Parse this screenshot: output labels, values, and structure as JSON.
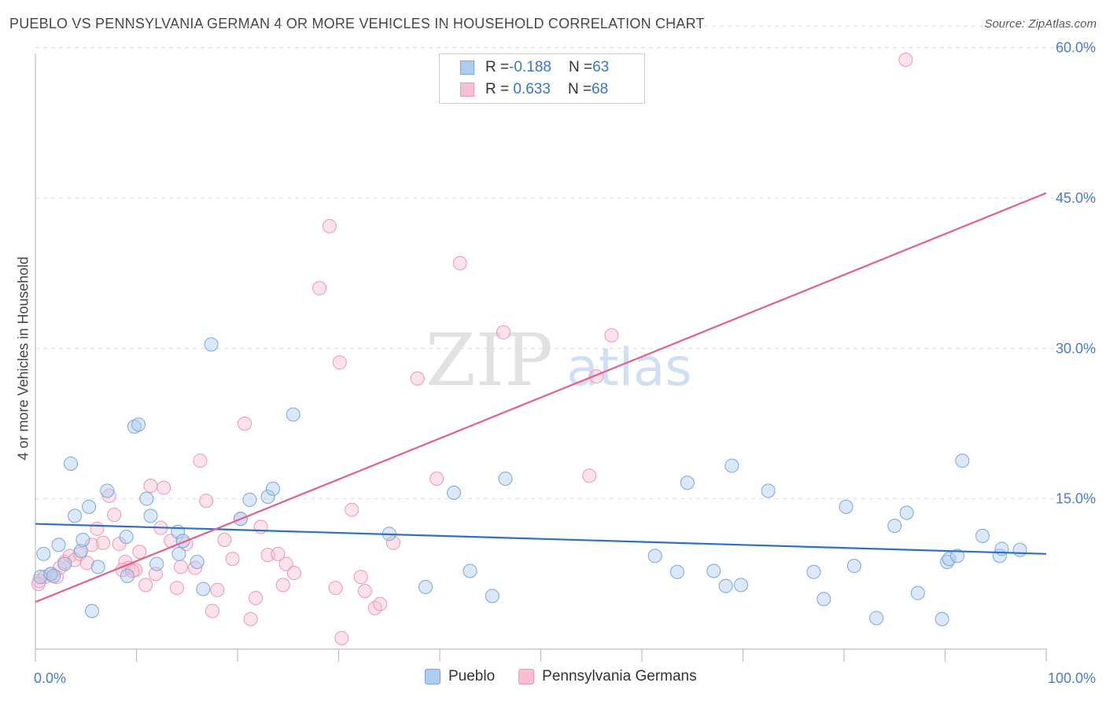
{
  "header": {
    "title": "PUEBLO VS PENNSYLVANIA GERMAN 4 OR MORE VEHICLES IN HOUSEHOLD CORRELATION CHART",
    "source": "Source: ZipAtlas.com"
  },
  "watermark": {
    "part1": "ZIP",
    "part2": "atlas"
  },
  "legend": {
    "rows": [
      {
        "r_label": "R = ",
        "r_value": "-0.188",
        "n_label": "N = ",
        "n_value": "63"
      },
      {
        "r_label": "R = ",
        "r_value": " 0.633",
        "n_label": "N = ",
        "n_value": "68"
      }
    ]
  },
  "bottom_legend": {
    "series1": "Pueblo",
    "series2": "Pennsylvania Germans"
  },
  "colors": {
    "pueblo_fill": "#aecbf0",
    "pueblo_stroke": "#7aa6dd",
    "pueblo_line": "#2f6fc9",
    "penn_fill": "#f8c0d0",
    "penn_stroke": "#ee96b2",
    "penn_line": "#e0608e",
    "axis_text": "#4a7cc9",
    "grid": "#dcdcdc"
  },
  "chart_data": {
    "type": "scatter",
    "title": "PUEBLO VS PENNSYLVANIA GERMAN 4 OR MORE VEHICLES IN HOUSEHOLD CORRELATION CHART",
    "xlabel": "",
    "ylabel": "4 or more Vehicles in Household",
    "xlim": [
      0,
      100
    ],
    "ylim": [
      0,
      62
    ],
    "x_tick_labels": [
      "0.0%",
      "100.0%"
    ],
    "y_ticks": [
      15,
      30,
      45,
      60
    ],
    "y_tick_labels": [
      "15.0%",
      "30.0%",
      "45.0%",
      "60.0%"
    ],
    "series": [
      {
        "name": "Pueblo",
        "R": -0.188,
        "N": 63,
        "trend": {
          "x": [
            0,
            100
          ],
          "y": [
            12.5,
            9.5
          ]
        },
        "points": [
          [
            0.5,
            7.2
          ],
          [
            0.8,
            9.5
          ],
          [
            1.5,
            7.5
          ],
          [
            1.8,
            7.3
          ],
          [
            2.3,
            10.4
          ],
          [
            2.9,
            8.5
          ],
          [
            3.5,
            18.5
          ],
          [
            3.9,
            13.3
          ],
          [
            4.5,
            9.8
          ],
          [
            4.7,
            10.9
          ],
          [
            5.3,
            14.2
          ],
          [
            5.6,
            3.8
          ],
          [
            6.2,
            8.2
          ],
          [
            7.1,
            15.8
          ],
          [
            9.0,
            11.2
          ],
          [
            9.1,
            7.3
          ],
          [
            9.8,
            22.2
          ],
          [
            10.2,
            22.4
          ],
          [
            11.0,
            15.0
          ],
          [
            11.4,
            13.3
          ],
          [
            12.0,
            8.5
          ],
          [
            14.1,
            11.7
          ],
          [
            14.2,
            9.5
          ],
          [
            14.6,
            10.8
          ],
          [
            16.0,
            8.7
          ],
          [
            16.6,
            6.0
          ],
          [
            17.4,
            30.4
          ],
          [
            20.3,
            13.0
          ],
          [
            21.2,
            14.9
          ],
          [
            23.0,
            15.2
          ],
          [
            23.5,
            16.0
          ],
          [
            25.5,
            23.4
          ],
          [
            35.0,
            11.5
          ],
          [
            38.6,
            6.2
          ],
          [
            41.4,
            15.6
          ],
          [
            43.0,
            7.8
          ],
          [
            45.2,
            5.3
          ],
          [
            46.5,
            17.0
          ],
          [
            61.3,
            9.3
          ],
          [
            63.5,
            7.7
          ],
          [
            64.5,
            16.6
          ],
          [
            67.1,
            7.8
          ],
          [
            68.3,
            6.3
          ],
          [
            68.9,
            18.3
          ],
          [
            69.8,
            6.4
          ],
          [
            72.5,
            15.8
          ],
          [
            77.0,
            7.7
          ],
          [
            78.0,
            5.0
          ],
          [
            80.2,
            14.2
          ],
          [
            81.0,
            8.3
          ],
          [
            83.2,
            3.1
          ],
          [
            85.0,
            12.3
          ],
          [
            86.2,
            13.6
          ],
          [
            87.3,
            5.6
          ],
          [
            89.7,
            3.0
          ],
          [
            90.2,
            8.7
          ],
          [
            90.4,
            9.0
          ],
          [
            91.2,
            9.3
          ],
          [
            91.7,
            18.8
          ],
          [
            93.7,
            11.3
          ],
          [
            95.4,
            9.3
          ],
          [
            95.6,
            10.0
          ],
          [
            97.4,
            9.9
          ]
        ]
      },
      {
        "name": "Pennsylvania Germans",
        "R": 0.633,
        "N": 68,
        "trend": {
          "x": [
            0,
            100
          ],
          "y": [
            4.7,
            45.5
          ]
        },
        "points": [
          [
            0.4,
            6.8
          ],
          [
            0.9,
            7.2
          ],
          [
            1.6,
            7.5
          ],
          [
            2.1,
            7.2
          ],
          [
            2.4,
            8.1
          ],
          [
            2.9,
            8.7
          ],
          [
            3.4,
            9.3
          ],
          [
            3.9,
            8.9
          ],
          [
            4.4,
            9.5
          ],
          [
            5.1,
            8.6
          ],
          [
            5.6,
            10.4
          ],
          [
            6.1,
            12.0
          ],
          [
            6.7,
            10.6
          ],
          [
            7.3,
            15.3
          ],
          [
            7.8,
            13.4
          ],
          [
            8.3,
            10.5
          ],
          [
            8.9,
            8.7
          ],
          [
            9.2,
            8.1
          ],
          [
            9.9,
            7.9
          ],
          [
            10.3,
            9.7
          ],
          [
            10.9,
            6.4
          ],
          [
            11.4,
            16.3
          ],
          [
            11.9,
            7.5
          ],
          [
            12.4,
            12.1
          ],
          [
            12.7,
            16.1
          ],
          [
            13.4,
            10.8
          ],
          [
            14.0,
            6.1
          ],
          [
            14.4,
            8.2
          ],
          [
            14.9,
            10.5
          ],
          [
            15.8,
            8.1
          ],
          [
            16.3,
            18.8
          ],
          [
            16.9,
            14.8
          ],
          [
            17.5,
            3.8
          ],
          [
            18.0,
            5.9
          ],
          [
            18.7,
            10.9
          ],
          [
            19.5,
            9.0
          ],
          [
            20.3,
            13.0
          ],
          [
            20.7,
            22.5
          ],
          [
            21.3,
            3.0
          ],
          [
            21.8,
            5.1
          ],
          [
            22.3,
            12.2
          ],
          [
            23.0,
            9.4
          ],
          [
            24.0,
            9.5
          ],
          [
            24.5,
            6.4
          ],
          [
            24.8,
            8.5
          ],
          [
            25.6,
            7.6
          ],
          [
            28.1,
            36.0
          ],
          [
            29.1,
            42.2
          ],
          [
            29.7,
            6.1
          ],
          [
            30.1,
            28.6
          ],
          [
            30.3,
            1.1
          ],
          [
            31.3,
            13.9
          ],
          [
            32.2,
            7.2
          ],
          [
            32.6,
            5.8
          ],
          [
            33.6,
            4.1
          ],
          [
            34.1,
            4.5
          ],
          [
            35.4,
            10.6
          ],
          [
            37.8,
            27.0
          ],
          [
            39.7,
            17.0
          ],
          [
            42.0,
            38.5
          ],
          [
            46.3,
            31.6
          ],
          [
            54.8,
            17.3
          ],
          [
            55.5,
            27.2
          ],
          [
            57.0,
            31.3
          ],
          [
            86.1,
            58.8
          ],
          [
            0.3,
            6.5
          ],
          [
            8.6,
            7.9
          ],
          [
            9.6,
            7.8
          ]
        ]
      }
    ]
  }
}
